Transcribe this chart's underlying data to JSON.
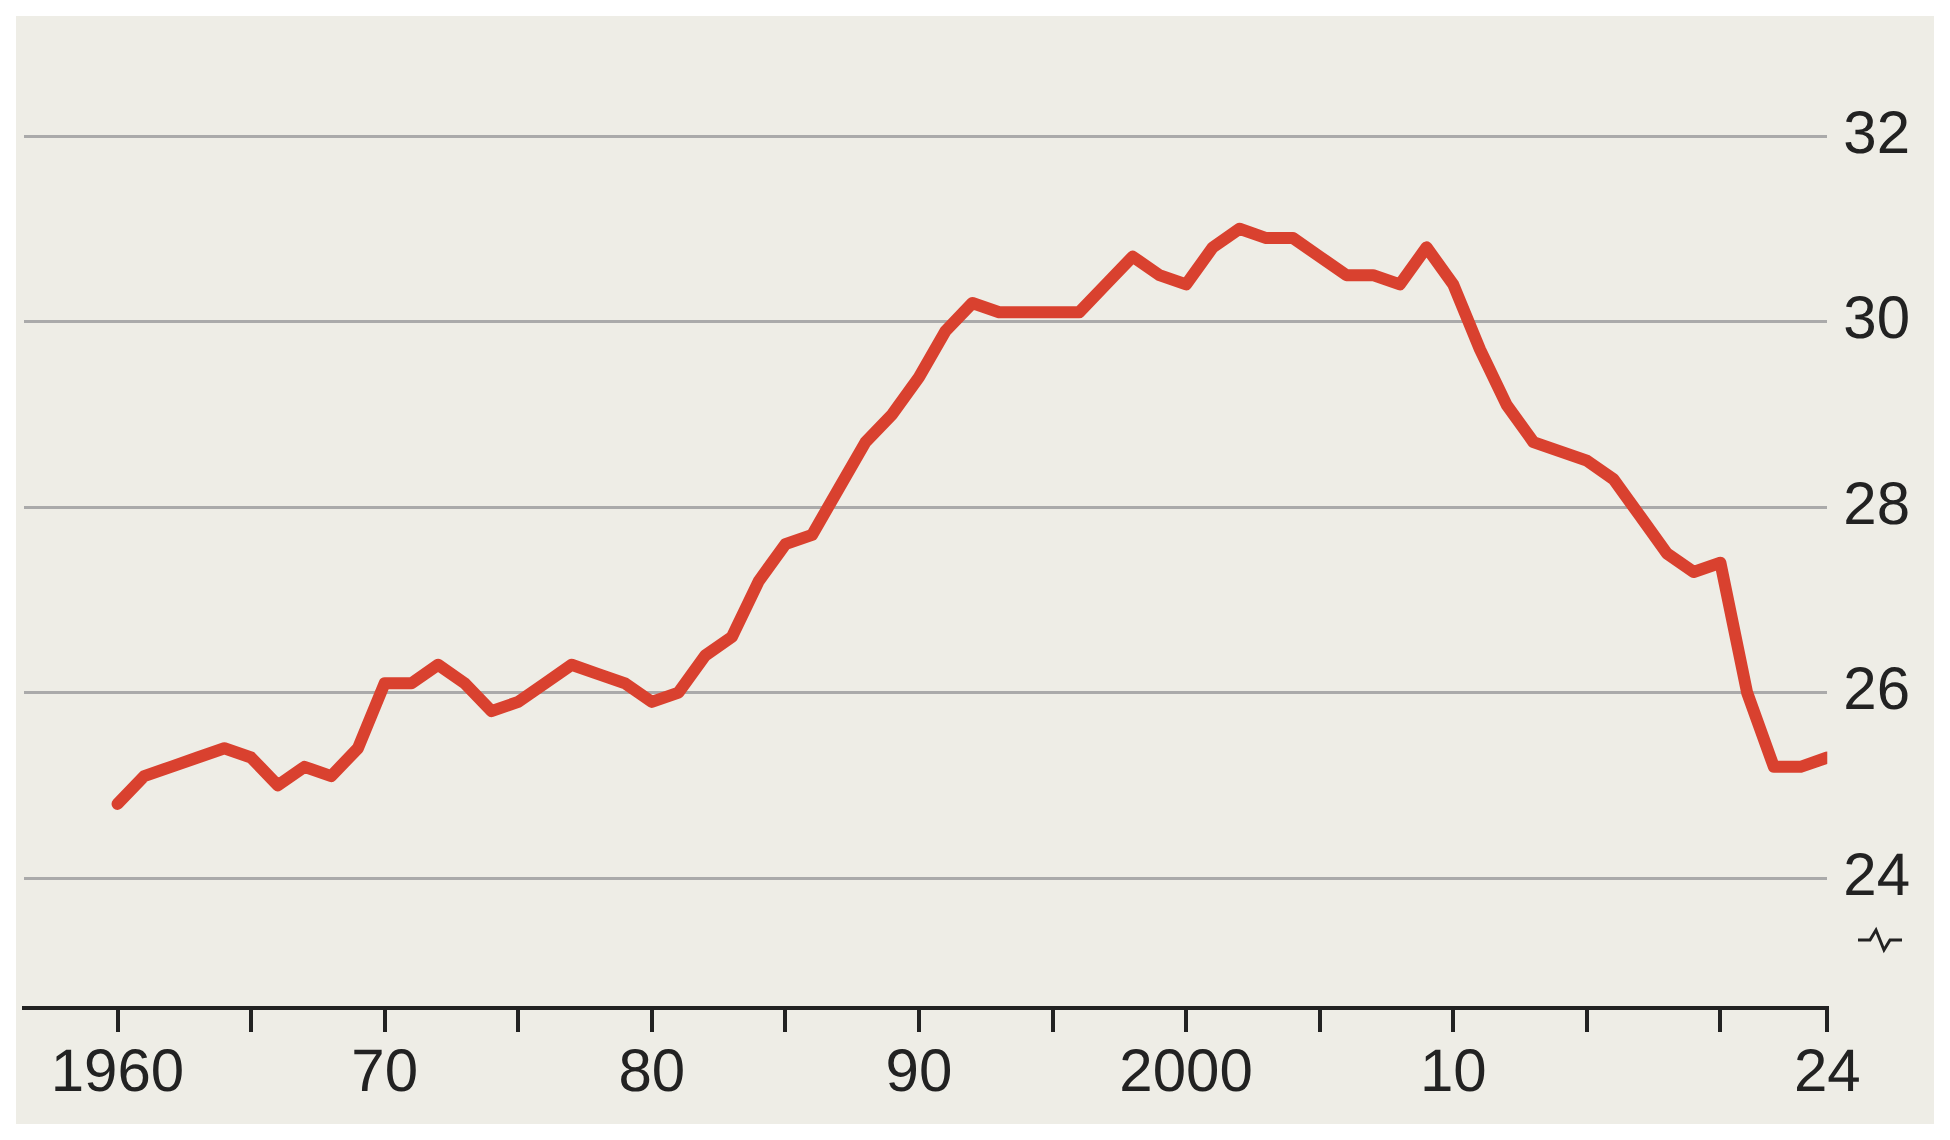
{
  "chart_data": {
    "type": "line",
    "x": [
      1960,
      1961,
      1962,
      1963,
      1964,
      1965,
      1966,
      1967,
      1968,
      1969,
      1970,
      1971,
      1972,
      1973,
      1974,
      1975,
      1976,
      1977,
      1978,
      1979,
      1980,
      1981,
      1982,
      1983,
      1984,
      1985,
      1986,
      1987,
      1988,
      1989,
      1990,
      1991,
      1992,
      1993,
      1994,
      1995,
      1996,
      1997,
      1998,
      1999,
      2000,
      2001,
      2002,
      2003,
      2004,
      2005,
      2006,
      2007,
      2008,
      2009,
      2010,
      2011,
      2012,
      2013,
      2014,
      2015,
      2016,
      2017,
      2018,
      2019,
      2020,
      2021,
      2022,
      2023,
      2024
    ],
    "series": [
      {
        "color": "#d9412f",
        "values": [
          24.8,
          25.1,
          25.2,
          25.3,
          25.4,
          25.3,
          25.0,
          25.2,
          25.1,
          25.4,
          26.1,
          26.1,
          26.3,
          26.1,
          25.8,
          25.9,
          26.1,
          26.3,
          26.2,
          26.1,
          25.9,
          26.0,
          26.4,
          26.6,
          27.2,
          27.6,
          27.7,
          28.2,
          28.7,
          29.0,
          29.4,
          29.9,
          30.2,
          30.1,
          30.1,
          30.1,
          30.1,
          30.4,
          30.7,
          30.5,
          30.4,
          30.8,
          31.0,
          30.9,
          30.9,
          30.7,
          30.5,
          30.5,
          30.4,
          30.8,
          30.4,
          29.7,
          29.1,
          28.7,
          28.6,
          28.5,
          28.3,
          27.9,
          27.5,
          27.3,
          27.4,
          26.0,
          25.2,
          25.2,
          25.3
        ]
      }
    ],
    "xlim": [
      1956.5,
      2024
    ],
    "xticks": [
      {
        "value": 1960,
        "label": "1960"
      },
      {
        "value": 1965,
        "label": null
      },
      {
        "value": 1970,
        "label": "70"
      },
      {
        "value": 1975,
        "label": null
      },
      {
        "value": 1980,
        "label": "80"
      },
      {
        "value": 1985,
        "label": null
      },
      {
        "value": 1990,
        "label": "90"
      },
      {
        "value": 1995,
        "label": null
      },
      {
        "value": 2000,
        "label": "2000"
      },
      {
        "value": 2005,
        "label": null
      },
      {
        "value": 2010,
        "label": "10"
      },
      {
        "value": 2015,
        "label": null
      },
      {
        "value": 2020,
        "label": null
      },
      {
        "value": 2024,
        "label": "24"
      }
    ],
    "ylim": [
      22.6,
      32
    ],
    "yticks": [
      24,
      26,
      28,
      30,
      32
    ],
    "grid": "y",
    "legend": false,
    "marker": "none",
    "line_style": "solid"
  }
}
